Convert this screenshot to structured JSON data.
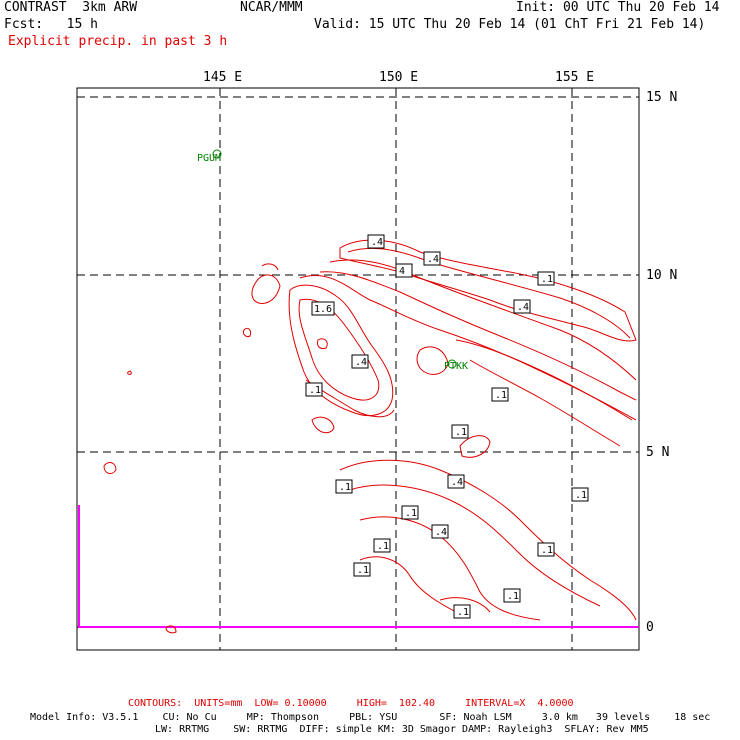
{
  "header": {
    "model": "CONTRAST  3km ARW",
    "org": "NCAR/MMM",
    "init": "Init: 00 UTC Thu 20 Feb 14",
    "fcst": "Fcst:   15 h",
    "valid": "Valid: 15 UTC Thu 20 Feb 14 (01 ChT Fri 21 Feb 14)",
    "field": "Explicit precip. in past 3 h"
  },
  "axes": {
    "lon_labels": [
      "145 E",
      "150 E",
      "155 E"
    ],
    "lat_labels": [
      "15 N",
      "10 N",
      "5 N",
      "0"
    ]
  },
  "stations": [
    {
      "id": "PGUM"
    },
    {
      "id": "PTKK"
    }
  ],
  "contour_labels": [
    ".4",
    "4",
    ".4",
    ".1",
    ".4",
    "1.6",
    ".4",
    ".1",
    ".1",
    ".1",
    ".4",
    ".1",
    ".1",
    ".4",
    ".1",
    ".1",
    ".1",
    ".1",
    ".1",
    ".1"
  ],
  "footer": {
    "contours": "CONTOURS:  UNITS=mm  LOW= 0.10000     HIGH=  102.40     INTERVAL=X  4.0000",
    "model_info": "Model Info: V3.5.1    CU: No Cu     MP: Thompson     PBL: YSU       SF: Noah LSM     3.0 km   39 levels    18 sec",
    "model_info2": "LW: RRTMG    SW: RRTMG  DIFF: simple KM: 3D Smagor DAMP: Rayleigh3  SFLAY: Rev MM5"
  },
  "colors": {
    "contour": "#e00000",
    "station": "#008000",
    "boundary": "#ff00ff",
    "grid": "#000000"
  }
}
